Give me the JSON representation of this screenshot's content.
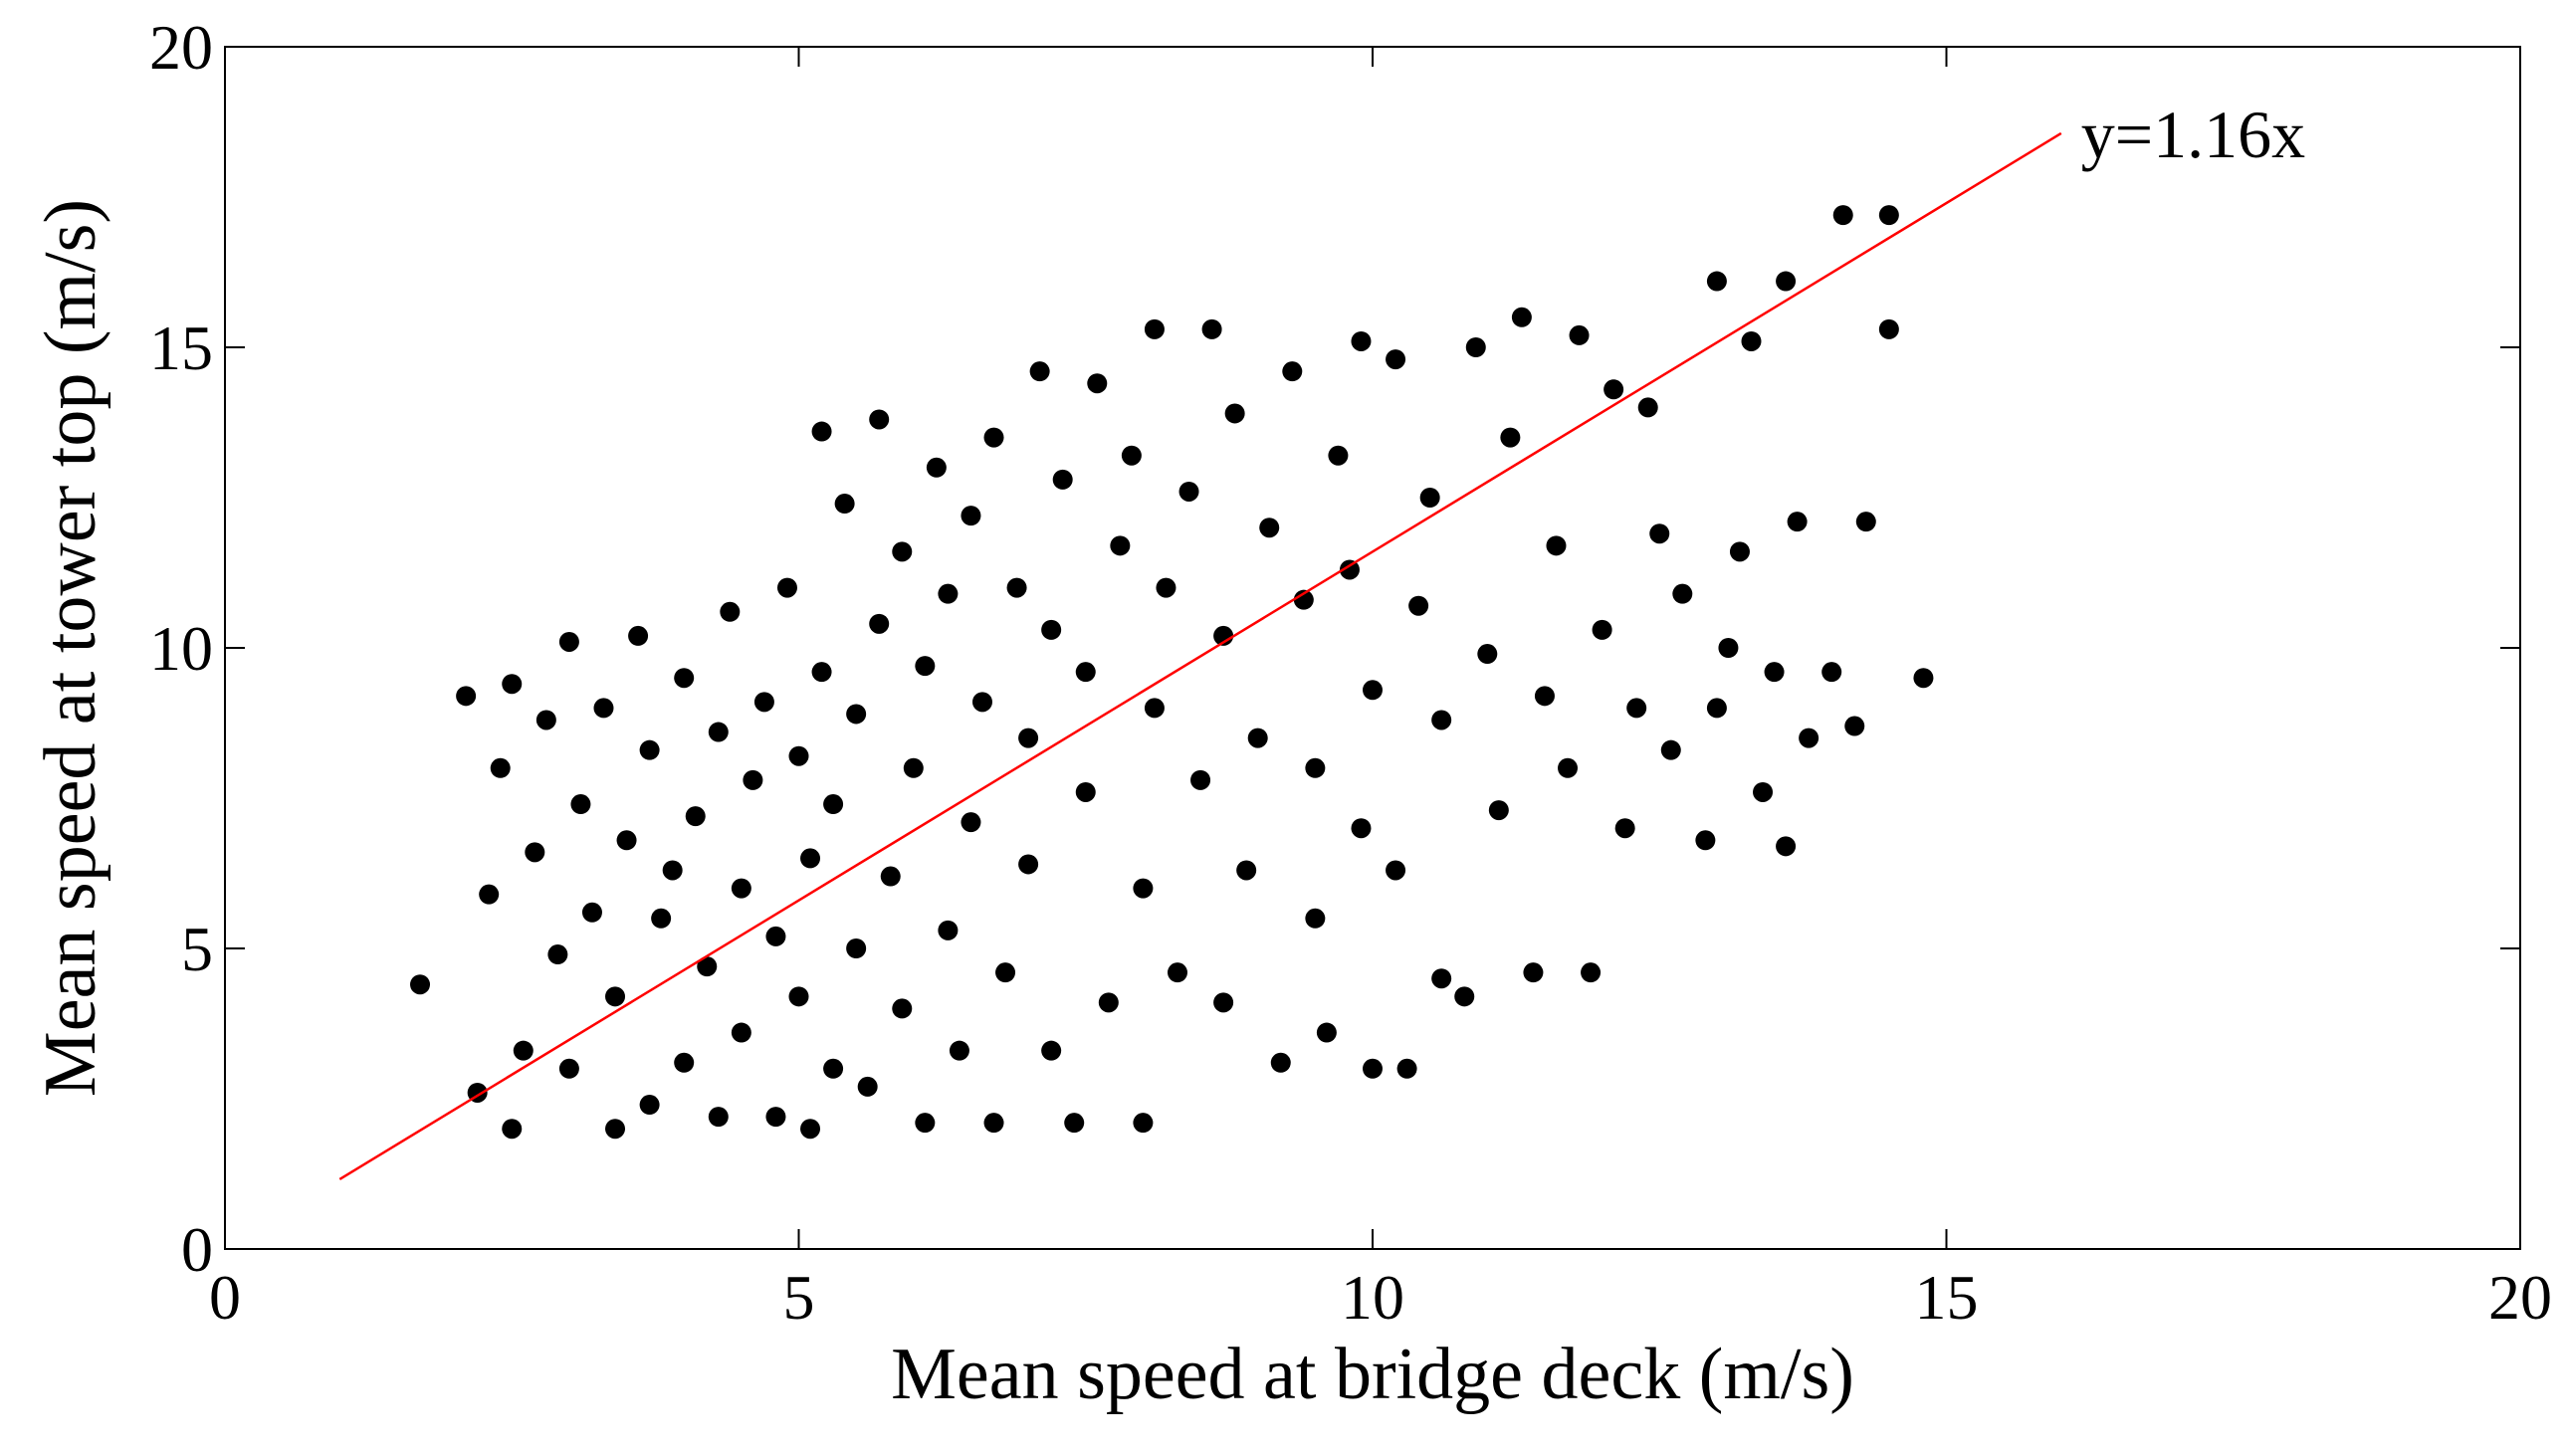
{
  "chart_data": {
    "type": "scatter",
    "xlabel": "Mean speed at bridge deck (m/s)",
    "ylabel": "Mean speed at tower top (m/s)",
    "annotation": "y=1.16x",
    "xlim": [
      0,
      20
    ],
    "xticks": [
      0,
      5,
      10,
      15,
      20
    ],
    "ylim": [
      0,
      20
    ],
    "yticks": [
      0,
      5,
      10,
      15,
      20
    ],
    "series": [
      {
        "color": "#000000",
        "x": [
          1.7,
          2.1,
          2.2,
          2.3,
          2.4,
          2.5,
          2.5,
          2.6,
          2.7,
          2.8,
          2.9,
          3.0,
          3.0,
          3.1,
          3.2,
          3.3,
          3.4,
          3.4,
          3.5,
          3.6,
          3.7,
          3.7,
          3.8,
          3.9,
          4.0,
          4.0,
          4.1,
          4.2,
          4.3,
          4.3,
          4.4,
          4.5,
          4.5,
          4.6,
          4.7,
          4.8,
          4.8,
          4.9,
          5.0,
          5.0,
          5.1,
          5.1,
          5.2,
          5.2,
          5.3,
          5.3,
          5.4,
          5.5,
          5.5,
          5.6,
          5.7,
          5.7,
          5.8,
          5.9,
          5.9,
          6.0,
          6.1,
          6.1,
          6.2,
          6.3,
          6.3,
          6.4,
          6.5,
          6.5,
          6.6,
          6.7,
          6.7,
          6.8,
          6.9,
          7.0,
          7.0,
          7.1,
          7.2,
          7.2,
          7.3,
          7.4,
          7.5,
          7.5,
          7.6,
          7.7,
          7.8,
          7.9,
          8.0,
          8.0,
          8.1,
          8.1,
          8.2,
          8.3,
          8.4,
          8.5,
          8.6,
          8.7,
          8.7,
          8.8,
          8.9,
          9.0,
          9.1,
          9.2,
          9.3,
          9.4,
          9.5,
          9.5,
          9.6,
          9.7,
          9.8,
          9.9,
          9.9,
          10.0,
          10.0,
          10.2,
          10.2,
          10.3,
          10.4,
          10.5,
          10.6,
          10.6,
          10.8,
          10.9,
          11.0,
          11.1,
          11.2,
          11.3,
          11.4,
          11.5,
          11.6,
          11.7,
          11.8,
          11.9,
          12.0,
          12.1,
          12.2,
          12.3,
          12.4,
          12.5,
          12.6,
          12.7,
          12.9,
          13.0,
          13.0,
          13.1,
          13.2,
          13.3,
          13.4,
          13.5,
          13.6,
          13.6,
          13.7,
          13.8,
          14.0,
          14.1,
          14.2,
          14.3,
          14.5,
          14.5,
          14.8
        ],
        "values": [
          4.4,
          9.2,
          2.6,
          5.9,
          8.0,
          9.4,
          2.0,
          3.3,
          6.6,
          8.8,
          4.9,
          10.1,
          3.0,
          7.4,
          5.6,
          9.0,
          2.0,
          4.2,
          6.8,
          10.2,
          2.4,
          8.3,
          5.5,
          6.3,
          3.1,
          9.5,
          7.2,
          4.7,
          2.2,
          8.6,
          10.6,
          6.0,
          3.6,
          7.8,
          9.1,
          2.2,
          5.2,
          11.0,
          8.2,
          4.2,
          2.0,
          6.5,
          13.6,
          9.6,
          3.0,
          7.4,
          12.4,
          5.0,
          8.9,
          2.7,
          13.8,
          10.4,
          6.2,
          4.0,
          11.6,
          8.0,
          2.1,
          9.7,
          13.0,
          5.3,
          10.9,
          3.3,
          7.1,
          12.2,
          9.1,
          2.1,
          13.5,
          4.6,
          11.0,
          6.4,
          8.5,
          14.6,
          3.3,
          10.3,
          12.8,
          2.1,
          7.6,
          9.6,
          14.4,
          4.1,
          11.7,
          13.2,
          2.1,
          6.0,
          15.3,
          9.0,
          11.0,
          4.6,
          12.6,
          7.8,
          15.3,
          4.1,
          10.2,
          13.9,
          6.3,
          8.5,
          12.0,
          3.1,
          14.6,
          10.8,
          5.5,
          8.0,
          3.6,
          13.2,
          11.3,
          7.0,
          15.1,
          3.0,
          9.3,
          14.8,
          6.3,
          3.0,
          10.7,
          12.5,
          8.8,
          4.5,
          4.2,
          15.0,
          9.9,
          7.3,
          13.5,
          15.5,
          4.6,
          9.2,
          11.7,
          8.0,
          15.2,
          4.6,
          10.3,
          14.3,
          7.0,
          9.0,
          14.0,
          11.9,
          8.3,
          10.9,
          6.8,
          16.1,
          9.0,
          10.0,
          11.6,
          15.1,
          7.6,
          9.6,
          6.7,
          16.1,
          12.1,
          8.5,
          9.6,
          17.2,
          8.7,
          12.1,
          15.3,
          17.2,
          9.5
        ]
      },
      {
        "type": "line",
        "color": "#ff0000",
        "x": [
          1,
          16
        ],
        "values": [
          1.16,
          18.56
        ]
      }
    ]
  }
}
